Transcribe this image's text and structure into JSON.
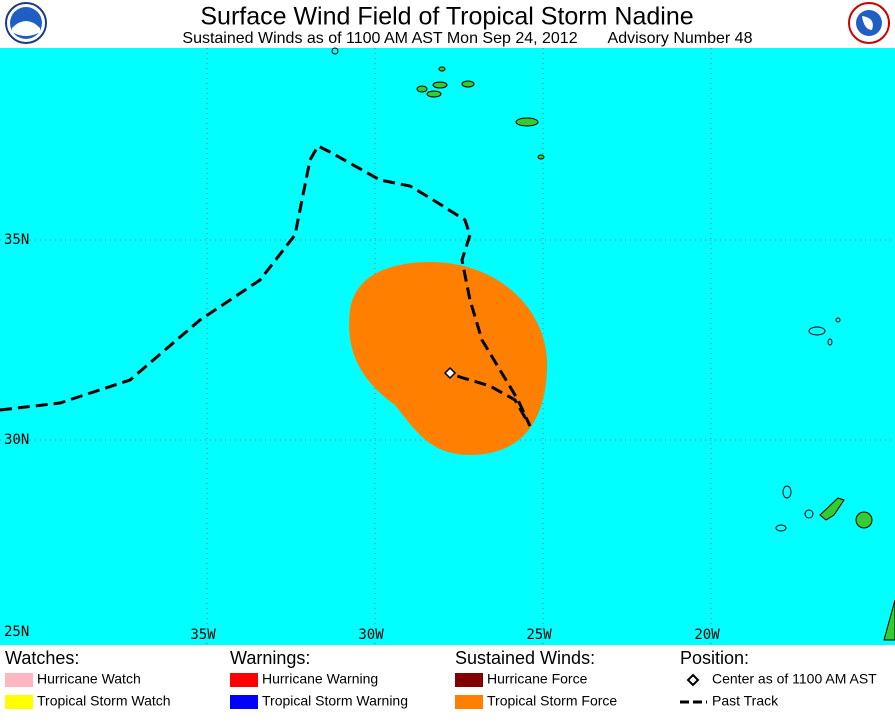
{
  "header": {
    "title": "Surface Wind Field of Tropical Storm Nadine",
    "subtitle": "Sustained Winds as of 1100 AM AST Mon Sep 24, 2012",
    "advisory": "Advisory Number 48"
  },
  "map": {
    "lat_labels": [
      "35N",
      "30N",
      "25N"
    ],
    "lon_labels": [
      "35W",
      "30W",
      "25W",
      "20W"
    ]
  },
  "legend": {
    "watches": {
      "title": "Watches:",
      "items": [
        "Hurricane Watch",
        "Tropical Storm Watch"
      ]
    },
    "warnings": {
      "title": "Warnings:",
      "items": [
        "Hurricane Warning",
        "Tropical Storm Warning"
      ]
    },
    "winds": {
      "title": "Sustained Winds:",
      "items": [
        "Hurricane Force",
        "Tropical Storm Force"
      ]
    },
    "position": {
      "title": "Position:",
      "items": [
        "Center as of 1100 AM AST",
        "Past Track"
      ]
    }
  }
}
